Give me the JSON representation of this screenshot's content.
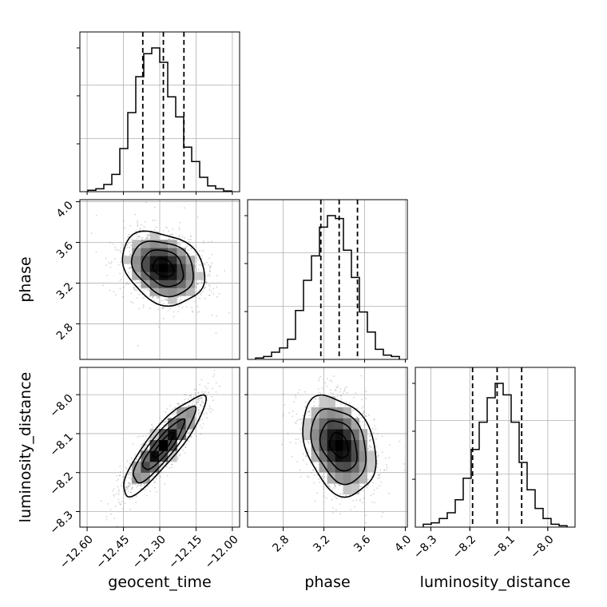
{
  "chart_data": {
    "type": "corner",
    "parameters": [
      "geocent_time",
      "phase",
      "luminosity_distance"
    ],
    "axis_labels": [
      "geocent_time",
      "phase",
      "luminosity_distance"
    ],
    "ranges": {
      "geocent_time": [
        -12.63,
        -11.97
      ],
      "phase": [
        2.45,
        4.02
      ],
      "luminosity_distance": [
        -8.34,
        -7.93
      ]
    },
    "ticks": {
      "geocent_time": [
        "−12.60",
        "−12.45",
        "−12.30",
        "−12.15",
        "−12.00"
      ],
      "phase": [
        "2.8",
        "3.2",
        "3.6",
        "4.0"
      ],
      "luminosity_distance": [
        "−8.3",
        "−8.2",
        "−8.1",
        "−8.0"
      ]
    },
    "tick_values": {
      "geocent_time": [
        -12.6,
        -12.45,
        -12.3,
        -12.15,
        -12.0
      ],
      "phase": [
        2.8,
        3.2,
        3.6,
        4.0
      ],
      "luminosity_distance": [
        -8.3,
        -8.2,
        -8.1,
        -8.0
      ]
    },
    "quantiles": {
      "geocent_time": [
        -12.37,
        -12.285,
        -12.2
      ],
      "phase": [
        3.17,
        3.35,
        3.53
      ],
      "luminosity_distance": [
        -8.193,
        -8.13,
        -8.067
      ]
    },
    "histograms": {
      "geocent_time": [
        0.01,
        0.02,
        0.05,
        0.12,
        0.3,
        0.55,
        0.8,
        0.96,
        1.0,
        0.9,
        0.66,
        0.52,
        0.31,
        0.21,
        0.1,
        0.04,
        0.02,
        0.005
      ],
      "phase": [
        0.01,
        0.02,
        0.05,
        0.08,
        0.14,
        0.34,
        0.55,
        0.72,
        0.92,
        1.0,
        0.98,
        0.76,
        0.57,
        0.33,
        0.19,
        0.07,
        0.03,
        0.02
      ],
      "luminosity_distance": [
        0.02,
        0.03,
        0.06,
        0.1,
        0.19,
        0.34,
        0.54,
        0.73,
        0.9,
        1.0,
        0.92,
        0.73,
        0.45,
        0.26,
        0.13,
        0.06,
        0.02,
        0.01
      ]
    },
    "means": {
      "geocent_time": -12.285,
      "phase": 3.35,
      "luminosity_distance": -8.13
    },
    "stds": {
      "geocent_time": 0.085,
      "phase": 0.18,
      "luminosity_distance": 0.064
    },
    "correlations": {
      "phase|geocent_time": -0.25,
      "luminosity_distance|geocent_time": 0.88,
      "luminosity_distance|phase": -0.3
    },
    "contour_levels_sigma": [
      0.5,
      1.0,
      1.5,
      2.0
    ],
    "grid": true,
    "colors": {
      "line": "#000000",
      "points": "#808080",
      "grid": "#b0b0b0"
    }
  }
}
